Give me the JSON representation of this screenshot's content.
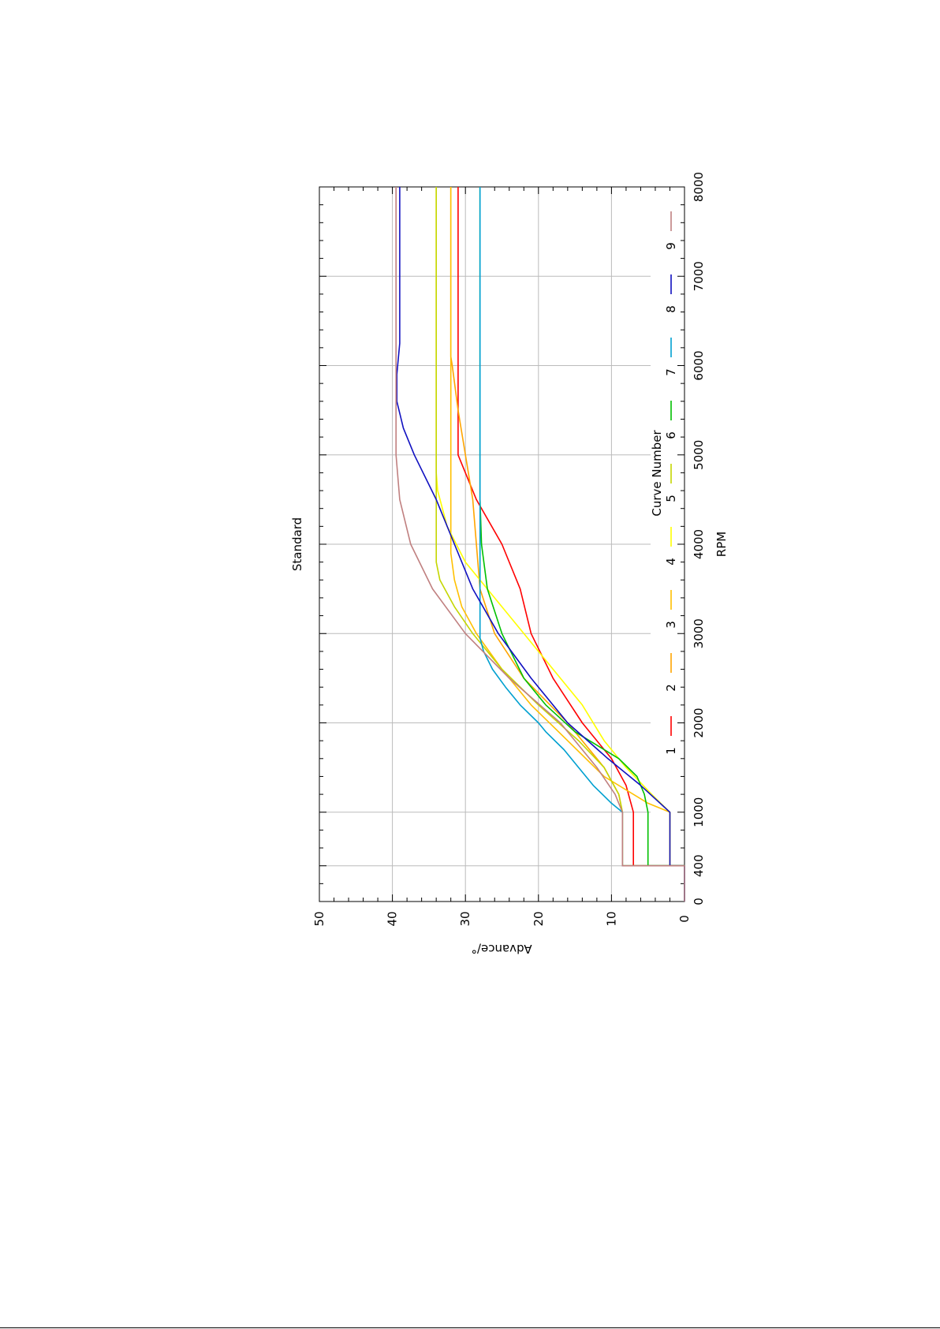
{
  "chart_data": {
    "type": "line",
    "title": "Standard",
    "xlabel": "RPM",
    "ylabel": "Advance/°",
    "xlim": [
      0,
      8000
    ],
    "ylim": [
      0,
      50
    ],
    "x_ticks": [
      0,
      400,
      1000,
      2000,
      3000,
      4000,
      5000,
      6000,
      7000,
      8000
    ],
    "y_ticks": [
      0,
      10,
      20,
      30,
      40,
      50
    ],
    "grid": true,
    "legend": {
      "title": "Curve Number",
      "placement": "right"
    },
    "series": [
      {
        "name": "1",
        "color": "#ff0000",
        "x": [
          0,
          400,
          400,
          1000,
          1300,
          1600,
          2000,
          2500,
          3000,
          3500,
          4000,
          4500,
          5000,
          5500,
          6000,
          6250,
          8000
        ],
        "y": [
          0,
          0,
          7,
          7,
          8,
          10,
          14,
          18,
          21,
          22.5,
          25,
          28.5,
          31,
          31,
          31,
          31,
          31
        ]
      },
      {
        "name": "2",
        "color": "#ffa500",
        "x": [
          0,
          400,
          400,
          1000,
          1200,
          1500,
          2000,
          2500,
          3000,
          3500,
          4000,
          4500,
          5000,
          5500,
          6000,
          6100,
          8000
        ],
        "y": [
          0,
          0,
          8.5,
          8.5,
          9,
          11,
          16,
          22,
          26,
          28,
          28.5,
          29,
          30,
          31,
          31.8,
          32,
          32
        ]
      },
      {
        "name": "3",
        "color": "#ffc000",
        "x": [
          0,
          400,
          400,
          1000,
          1100,
          1400,
          1800,
          2200,
          2600,
          3000,
          3300,
          3600,
          3900,
          4200,
          4500,
          5000,
          8000
        ],
        "y": [
          0,
          0,
          2,
          2,
          5,
          11,
          16,
          21,
          25,
          28.5,
          30.5,
          31.5,
          32,
          32,
          32,
          32,
          32
        ]
      },
      {
        "name": "4",
        "color": "#ffff00",
        "x": [
          0,
          400,
          400,
          1000,
          1200,
          1500,
          1800,
          2200,
          2600,
          3000,
          3400,
          3800,
          4200,
          4600,
          4800,
          5000,
          8000
        ],
        "y": [
          0,
          0,
          2,
          2,
          4.5,
          8,
          11,
          14,
          18,
          22,
          26,
          30,
          32.5,
          33.8,
          34,
          34,
          34
        ]
      },
      {
        "name": "5",
        "color": "#c4d600",
        "x": [
          0,
          400,
          400,
          1000,
          1200,
          1500,
          1800,
          2200,
          2600,
          3000,
          3300,
          3600,
          3800,
          4000,
          4200,
          4500,
          8000
        ],
        "y": [
          0,
          0,
          8.5,
          8.5,
          9,
          11,
          14.5,
          20,
          25,
          29,
          31.5,
          33.5,
          34,
          34,
          34,
          34,
          34
        ]
      },
      {
        "name": "6",
        "color": "#00c000",
        "x": [
          0,
          400,
          400,
          1000,
          1200,
          1400,
          1600,
          1750,
          1900,
          2200,
          2500,
          3000,
          3500,
          4000,
          4500,
          4800,
          8000
        ],
        "y": [
          0,
          0,
          5,
          5,
          5.5,
          6.5,
          9,
          12,
          15,
          19,
          22,
          25,
          27,
          27.8,
          28,
          28,
          28
        ]
      },
      {
        "name": "7",
        "color": "#00a0d0",
        "x": [
          0,
          400,
          400,
          1000,
          1100,
          1300,
          1500,
          1700,
          1900,
          2000,
          2200,
          2400,
          2600,
          2800,
          2950,
          3100,
          8000
        ],
        "y": [
          0,
          0,
          8.5,
          8.5,
          10,
          12.5,
          14.5,
          16.5,
          19,
          20,
          22.5,
          24.5,
          26.3,
          27.5,
          28,
          28,
          28
        ]
      },
      {
        "name": "8",
        "color": "#1010c0",
        "x": [
          0,
          400,
          400,
          1000,
          1300,
          1600,
          2000,
          2500,
          3000,
          3500,
          4000,
          4500,
          5000,
          5300,
          5600,
          5900,
          6250,
          8000
        ],
        "y": [
          0,
          0,
          2,
          2,
          6,
          10.5,
          16,
          21,
          25.5,
          29,
          31.5,
          34,
          37,
          38.5,
          39.4,
          39.4,
          39,
          39
        ]
      },
      {
        "name": "9",
        "color": "#c08080",
        "x": [
          0,
          400,
          400,
          1000,
          1200,
          1500,
          2000,
          2500,
          3000,
          3500,
          4000,
          4500,
          5000,
          5500,
          6000,
          8000
        ],
        "y": [
          0,
          0,
          8.5,
          8.5,
          9.5,
          12,
          17,
          24,
          30,
          34.5,
          37.5,
          39,
          39.5,
          39.5,
          39.5,
          39.5
        ]
      }
    ]
  }
}
